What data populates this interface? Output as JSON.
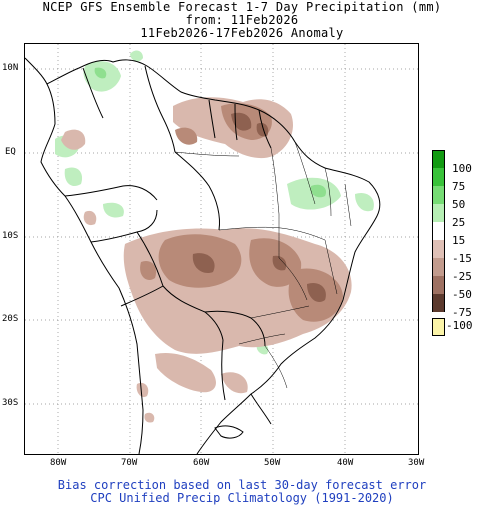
{
  "title": {
    "line1": "NCEP GFS Ensemble Forecast 1-7 Day Precipitation (mm)",
    "line2": "from: 11Feb2026",
    "line3": "11Feb2026-17Feb2026 Anomaly"
  },
  "map": {
    "lat_labels": [
      "10N",
      "EQ",
      "10S",
      "20S",
      "30S"
    ],
    "lon_labels": [
      "80W",
      "70W",
      "60W",
      "50W",
      "40W",
      "30W"
    ],
    "colors": {
      "dry_light": "#d9b8ad",
      "dry_medium": "#b88a78",
      "dry_dark": "#8e6150",
      "wet_light": "#bfeebf",
      "wet_medium": "#8fdf8f",
      "border": "#000000",
      "grid": "#888888"
    }
  },
  "legend": {
    "items": [
      {
        "label": "100",
        "color": "#129a12"
      },
      {
        "label": "75",
        "color": "#39c23a"
      },
      {
        "label": "50",
        "color": "#76dc74"
      },
      {
        "label": "25",
        "color": "#b6efb4"
      },
      {
        "label": "15",
        "color": "#ffffff"
      },
      {
        "label": "-15",
        "color": "#dfc0b6"
      },
      {
        "label": "-25",
        "color": "#c29b8d"
      },
      {
        "label": "-50",
        "color": "#9e7162"
      },
      {
        "label": "-75",
        "color": "#5c3a2e"
      },
      {
        "label": "-100",
        "color": "#fbf4a8"
      }
    ]
  },
  "footer": {
    "line1": "Bias correction based on last 30-day forecast error",
    "line2": "CPC Unified Precip Climatology (1991-2020)"
  }
}
